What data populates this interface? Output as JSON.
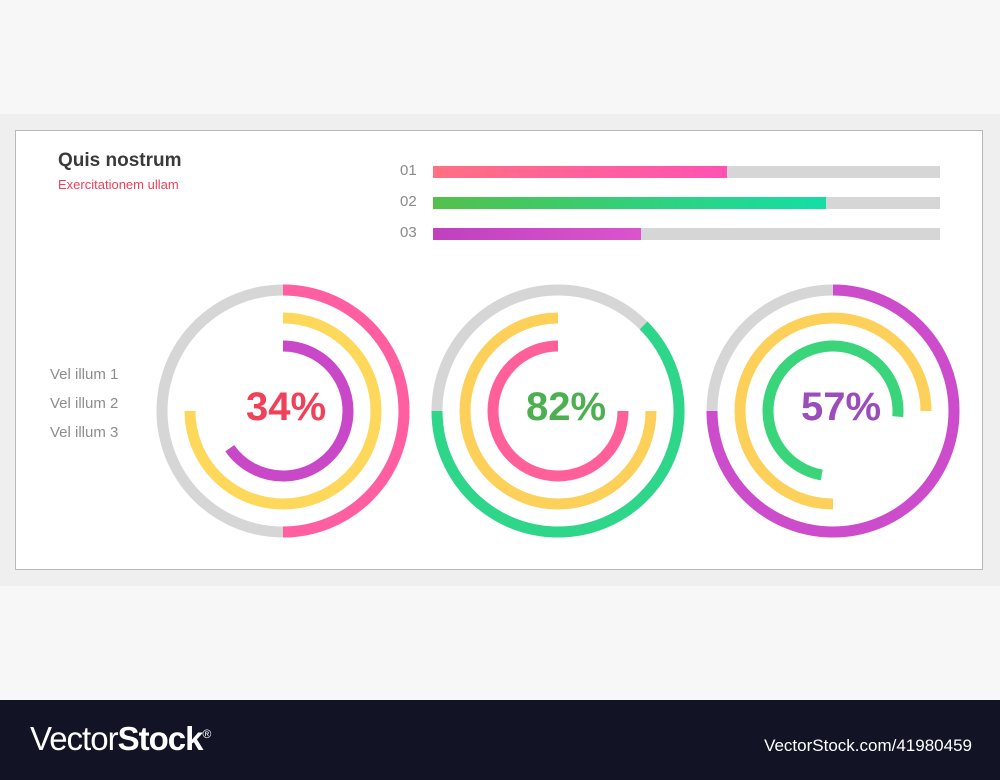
{
  "header": {
    "title": "Quis nostrum",
    "subtitle": "Exercitationem ullam"
  },
  "legend": [
    "Vel illum 1",
    "Vel illum 2",
    "Vel illum 3"
  ],
  "bars": [
    {
      "label": "01",
      "percent": 58,
      "colors": [
        "#ff7082",
        "#ff52b4"
      ]
    },
    {
      "label": "02",
      "percent": 77.5,
      "colors": [
        "#54c04c",
        "#14dea6"
      ]
    },
    {
      "label": "03",
      "percent": 41,
      "colors": [
        "#c040c0",
        "#dc54cc"
      ]
    }
  ],
  "donuts": [
    {
      "label": "34%",
      "label_color": "#f0405a",
      "rings": [
        {
          "start": 0,
          "sweep": 180,
          "color": "#ff5ea0"
        },
        {
          "start": 0,
          "sweep": 270,
          "color": "#fdd85a"
        },
        {
          "start": 0,
          "sweep": 235,
          "color": "#c848c8"
        }
      ]
    },
    {
      "label": "82%",
      "label_color": "#4caf50",
      "rings": [
        {
          "start": 45,
          "sweep": 225,
          "color": "#2ed68a"
        },
        {
          "start": 90,
          "sweep": 270,
          "color": "#fdd05a"
        },
        {
          "start": 90,
          "sweep": 270,
          "color": "#ff609a"
        }
      ]
    },
    {
      "label": "57%",
      "label_color": "#9c4dbc",
      "rings": [
        {
          "start": 0,
          "sweep": 270,
          "color": "#cc4ccc"
        },
        {
          "start": 180,
          "sweep": 270,
          "color": "#fdd05a"
        },
        {
          "start": 190,
          "sweep": 265,
          "color": "#3ad47a"
        }
      ]
    }
  ],
  "footer": {
    "brand_light": "Vector",
    "brand_bold": "Stock",
    "brand_mark": "®",
    "url": "VectorStock.com/41980459"
  },
  "chart_data": [
    {
      "type": "bar",
      "orientation": "horizontal",
      "title": "Quis nostrum",
      "subtitle": "Exercitationem ullam",
      "categories": [
        "01",
        "02",
        "03"
      ],
      "values": [
        58,
        77.5,
        41
      ],
      "ylim": [
        0,
        100
      ]
    },
    {
      "type": "pie",
      "subtype": "multi-ring radial",
      "series_names": [
        "Vel illum 1",
        "Vel illum 2",
        "Vel illum 3"
      ],
      "charts": [
        {
          "center_label": "34%",
          "ring_values_percent": [
            50,
            75,
            65
          ]
        },
        {
          "center_label": "82%",
          "ring_values_percent": [
            62.5,
            75,
            75
          ]
        },
        {
          "center_label": "57%",
          "ring_values_percent": [
            75,
            75,
            74
          ]
        }
      ]
    }
  ]
}
